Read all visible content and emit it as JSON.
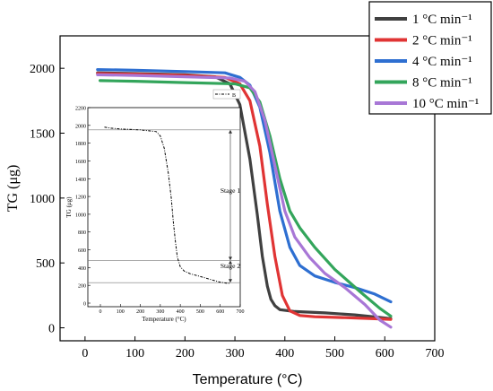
{
  "chart_data": [
    {
      "type": "line",
      "role": "main",
      "xlabel": "Temperature (°C)",
      "ylabel": "TG (μg)",
      "xlim": [
        -50,
        700
      ],
      "ylim": [
        -100,
        2250
      ],
      "xticks": [
        0,
        100,
        200,
        300,
        400,
        500,
        600,
        700
      ],
      "yticks": [
        0,
        500,
        1000,
        1500,
        2000
      ],
      "legend_position": "top-right",
      "series": [
        {
          "name": "1 °C min⁻¹",
          "color": "#404040",
          "x": [
            25,
            100,
            200,
            260,
            290,
            310,
            330,
            345,
            355,
            365,
            372,
            380,
            390,
            420,
            480,
            540,
            590,
            612
          ],
          "y": [
            1965,
            1960,
            1950,
            1935,
            1880,
            1720,
            1300,
            870,
            550,
            320,
            220,
            170,
            140,
            125,
            115,
            100,
            80,
            70
          ]
        },
        {
          "name": "2 °C min⁻¹",
          "color": "#e03434",
          "x": [
            25,
            100,
            200,
            280,
            310,
            330,
            350,
            365,
            380,
            395,
            410,
            430,
            460,
            520,
            580,
            612
          ],
          "y": [
            1960,
            1955,
            1945,
            1930,
            1880,
            1750,
            1400,
            950,
            550,
            250,
            130,
            95,
            85,
            78,
            70,
            65
          ]
        },
        {
          "name": "4 °C min⁻¹",
          "color": "#2e6fd1",
          "x": [
            25,
            100,
            200,
            280,
            310,
            330,
            350,
            370,
            390,
            410,
            430,
            460,
            500,
            540,
            580,
            612
          ],
          "y": [
            1990,
            1985,
            1975,
            1965,
            1930,
            1870,
            1700,
            1350,
            900,
            620,
            480,
            400,
            350,
            310,
            260,
            200
          ]
        },
        {
          "name": "8 °C min⁻¹",
          "color": "#33a55b",
          "x": [
            30,
            100,
            200,
            300,
            330,
            350,
            370,
            390,
            410,
            430,
            460,
            500,
            550,
            590,
            612
          ],
          "y": [
            1905,
            1900,
            1890,
            1880,
            1850,
            1740,
            1480,
            1150,
            900,
            770,
            620,
            450,
            280,
            150,
            90
          ]
        },
        {
          "name": "10 °C min⁻¹",
          "color": "#a877d6",
          "x": [
            25,
            100,
            200,
            290,
            320,
            340,
            360,
            380,
            400,
            420,
            450,
            480,
            520,
            560,
            590,
            612
          ],
          "y": [
            1950,
            1945,
            1935,
            1925,
            1900,
            1820,
            1600,
            1250,
            900,
            700,
            540,
            420,
            310,
            180,
            60,
            5
          ]
        }
      ]
    },
    {
      "type": "line",
      "role": "inset",
      "xlabel": "Temperature (°C)",
      "ylabel": "TG (μg)",
      "xlim": [
        0,
        700
      ],
      "ylim": [
        0,
        2200
      ],
      "xticks": [
        0,
        100,
        200,
        300,
        400,
        500,
        600,
        700
      ],
      "yticks": [
        0,
        200,
        400,
        600,
        800,
        1000,
        1200,
        1400,
        1600,
        1800,
        2000,
        2200
      ],
      "legend_label": "B",
      "reference_lines_y": [
        1950,
        480,
        230
      ],
      "annotations": [
        "Stage 1",
        "Stage 2"
      ],
      "series": [
        {
          "name": "B",
          "color": "#000000",
          "x": [
            20,
            50,
            100,
            200,
            280,
            300,
            320,
            340,
            355,
            365,
            375,
            385,
            400,
            420,
            450,
            500,
            560,
            600,
            630,
            650
          ],
          "y": [
            1980,
            1970,
            1960,
            1950,
            1930,
            1880,
            1740,
            1460,
            1180,
            920,
            700,
            520,
            410,
            360,
            330,
            300,
            260,
            235,
            225,
            222
          ]
        }
      ]
    }
  ]
}
